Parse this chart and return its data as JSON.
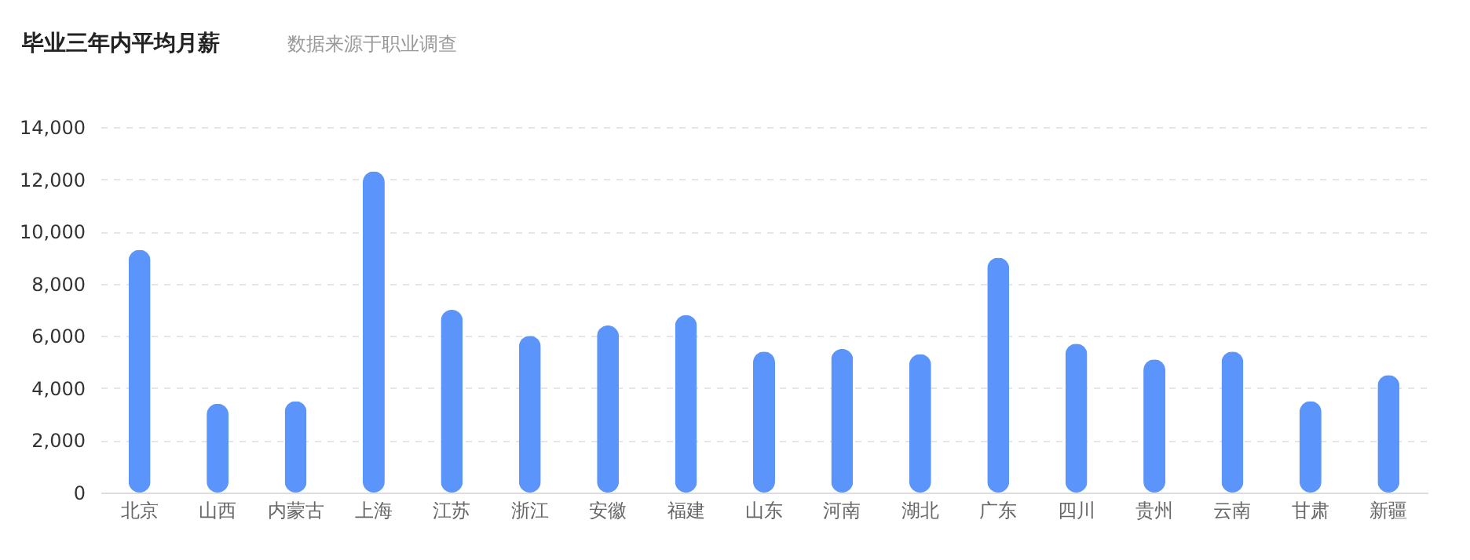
{
  "chart_data": {
    "type": "bar",
    "title": "毕业三年内平均月薪",
    "annotations": [
      "数据来源于职业调查"
    ],
    "categories": [
      "北京",
      "山西",
      "内蒙古",
      "上海",
      "江苏",
      "浙江",
      "安徽",
      "福建",
      "山东",
      "河南",
      "湖北",
      "广东",
      "四川",
      "贵州",
      "云南",
      "甘肃",
      "新疆"
    ],
    "values": [
      9300,
      3400,
      3500,
      12300,
      7000,
      6000,
      6400,
      6800,
      5400,
      5500,
      5300,
      9000,
      5700,
      5100,
      5400,
      3500,
      4500
    ],
    "color": "#5b94fa",
    "ylim": [
      0,
      14000
    ],
    "yticks": [
      0,
      {
        "value": 2000,
        "label": "2,000"
      },
      {
        "value": 4000,
        "label": "4,000"
      },
      {
        "value": 6000,
        "label": "6,000"
      },
      {
        "value": 8000,
        "label": "8,000"
      },
      {
        "value": 10000,
        "label": "10,000"
      },
      {
        "value": 12000,
        "label": "12,000"
      },
      {
        "value": 14000,
        "label": "14,000"
      }
    ],
    "grid": "y"
  }
}
